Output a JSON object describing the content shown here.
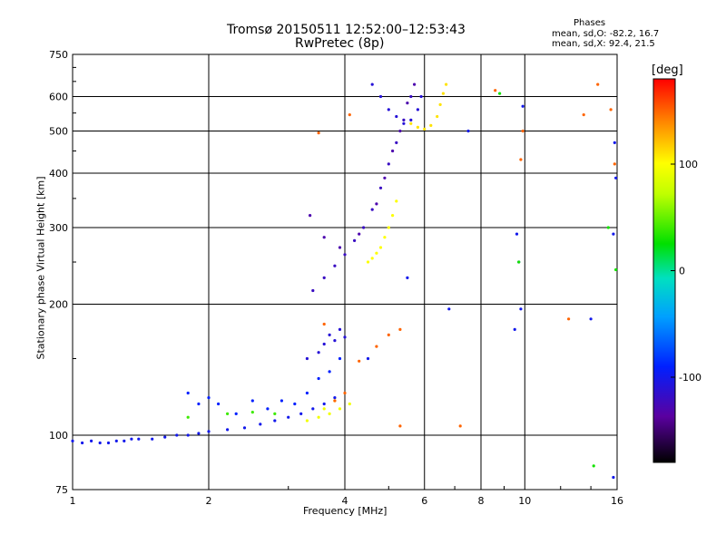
{
  "chart_data": {
    "type": "scatter",
    "title": "Tromsø 20150511 12:52:00–12:53:43",
    "subtitle": "RwPretec (8p)",
    "stats": {
      "heading": "Phases",
      "line1": "mean, sd,O:  -82.2, 16.7",
      "line2": "mean, sd,X:  92.4, 21.5"
    },
    "xlabel": "Frequency [MHz]",
    "ylabel": "Stationary phase Virtual Height [km]",
    "x_scale": "log",
    "y_scale": "log",
    "xlim": [
      1,
      16
    ],
    "ylim": [
      75,
      750
    ],
    "x_ticks": [
      1,
      2,
      4,
      6,
      8,
      10,
      16
    ],
    "x_tick_labels": [
      "1",
      "2",
      "4",
      "6",
      "8",
      "10",
      "16"
    ],
    "y_ticks": [
      75,
      100,
      200,
      300,
      400,
      500,
      600,
      750
    ],
    "y_tick_labels": [
      "75",
      "100",
      "200",
      "300",
      "400",
      "500",
      "600",
      "750"
    ],
    "grid": true,
    "colorbar": {
      "label": "[deg]",
      "range": [
        -180,
        180
      ],
      "ticks": [
        -100,
        0,
        100
      ],
      "tick_labels": [
        "-100",
        "0",
        "100"
      ]
    },
    "series": [
      {
        "phase": -100,
        "points": [
          [
            1.0,
            97
          ],
          [
            1.05,
            96
          ],
          [
            1.1,
            97
          ],
          [
            1.15,
            96
          ],
          [
            1.2,
            96
          ],
          [
            1.25,
            97
          ],
          [
            1.3,
            97
          ],
          [
            1.35,
            98
          ],
          [
            1.4,
            98
          ],
          [
            1.5,
            98
          ],
          [
            1.6,
            99
          ],
          [
            1.7,
            100
          ],
          [
            1.8,
            100
          ],
          [
            1.9,
            101
          ],
          [
            2.0,
            102
          ],
          [
            2.2,
            103
          ],
          [
            2.4,
            104
          ],
          [
            2.6,
            106
          ],
          [
            2.8,
            108
          ],
          [
            3.0,
            110
          ],
          [
            3.2,
            112
          ],
          [
            3.4,
            115
          ],
          [
            3.6,
            118
          ],
          [
            3.8,
            122
          ]
        ]
      },
      {
        "phase": -90,
        "points": [
          [
            1.8,
            125
          ],
          [
            1.9,
            118
          ],
          [
            2.0,
            122
          ],
          [
            2.1,
            118
          ],
          [
            2.3,
            112
          ],
          [
            2.5,
            120
          ],
          [
            2.7,
            115
          ],
          [
            2.9,
            120
          ],
          [
            3.1,
            118
          ],
          [
            3.3,
            125
          ],
          [
            3.5,
            135
          ],
          [
            3.7,
            140
          ],
          [
            3.9,
            150
          ]
        ]
      },
      {
        "phase": -110,
        "points": [
          [
            3.3,
            150
          ],
          [
            3.5,
            155
          ],
          [
            3.6,
            162
          ],
          [
            3.7,
            170
          ],
          [
            3.8,
            165
          ],
          [
            3.9,
            175
          ],
          [
            4.0,
            168
          ]
        ]
      },
      {
        "phase": -120,
        "points": [
          [
            3.4,
            215
          ],
          [
            3.6,
            230
          ],
          [
            3.8,
            245
          ],
          [
            4.0,
            260
          ],
          [
            4.2,
            280
          ],
          [
            4.4,
            300
          ],
          [
            4.6,
            330
          ],
          [
            4.8,
            370
          ],
          [
            5.0,
            420
          ],
          [
            5.2,
            470
          ],
          [
            5.4,
            530
          ],
          [
            5.6,
            600
          ]
        ]
      },
      {
        "phase": -130,
        "points": [
          [
            3.35,
            320
          ],
          [
            3.6,
            285
          ],
          [
            3.9,
            270
          ],
          [
            4.3,
            290
          ],
          [
            4.7,
            340
          ],
          [
            4.9,
            390
          ],
          [
            5.1,
            450
          ],
          [
            5.3,
            500
          ],
          [
            5.5,
            580
          ],
          [
            5.7,
            640
          ]
        ]
      },
      {
        "phase": -110,
        "points": [
          [
            4.6,
            640
          ],
          [
            4.8,
            600
          ],
          [
            5.0,
            560
          ],
          [
            5.2,
            540
          ],
          [
            5.4,
            520
          ],
          [
            5.6,
            530
          ],
          [
            5.8,
            560
          ],
          [
            5.9,
            600
          ]
        ]
      },
      {
        "phase": 100,
        "points": [
          [
            4.5,
            250
          ],
          [
            4.6,
            255
          ],
          [
            4.7,
            262
          ],
          [
            4.8,
            270
          ],
          [
            4.9,
            285
          ],
          [
            5.0,
            300
          ],
          [
            5.1,
            320
          ],
          [
            5.2,
            345
          ]
        ]
      },
      {
        "phase": 110,
        "points": [
          [
            5.6,
            520
          ],
          [
            5.8,
            510
          ],
          [
            6.0,
            505
          ],
          [
            6.2,
            515
          ],
          [
            6.4,
            540
          ],
          [
            6.5,
            575
          ],
          [
            6.6,
            610
          ],
          [
            6.7,
            640
          ]
        ]
      },
      {
        "phase": 95,
        "points": [
          [
            3.3,
            108
          ],
          [
            3.5,
            110
          ],
          [
            3.7,
            112
          ],
          [
            3.9,
            115
          ],
          [
            4.1,
            118
          ],
          [
            3.6,
            115
          ],
          [
            3.8,
            120
          ]
        ]
      },
      {
        "phase": 40,
        "points": [
          [
            1.8,
            110
          ],
          [
            2.2,
            112
          ],
          [
            2.5,
            113
          ],
          [
            2.8,
            112
          ]
        ]
      },
      {
        "phase": 150,
        "points": [
          [
            3.8,
            120
          ],
          [
            4.0,
            125
          ],
          [
            4.3,
            148
          ],
          [
            4.7,
            160
          ],
          [
            5.0,
            170
          ],
          [
            5.3,
            175
          ],
          [
            4.1,
            545
          ],
          [
            3.5,
            495
          ],
          [
            3.6,
            180
          ],
          [
            5.3,
            105
          ],
          [
            7.2,
            105
          ],
          [
            8.6,
            620
          ],
          [
            9.8,
            430
          ],
          [
            9.9,
            500
          ],
          [
            12.5,
            185
          ],
          [
            13.5,
            545
          ],
          [
            14.5,
            640
          ],
          [
            15.5,
            560
          ],
          [
            15.8,
            420
          ]
        ]
      },
      {
        "phase": -100,
        "points": [
          [
            9.6,
            290
          ],
          [
            9.7,
            250
          ],
          [
            9.8,
            195
          ],
          [
            9.9,
            570
          ],
          [
            9.5,
            175
          ],
          [
            15.8,
            470
          ],
          [
            15.9,
            390
          ],
          [
            15.7,
            290
          ],
          [
            14.0,
            185
          ],
          [
            15.7,
            80
          ],
          [
            6.8,
            195
          ],
          [
            5.5,
            230
          ],
          [
            4.5,
            150
          ],
          [
            7.5,
            500
          ]
        ]
      },
      {
        "phase": 30,
        "points": [
          [
            9.7,
            250
          ],
          [
            15.9,
            240
          ],
          [
            15.3,
            300
          ],
          [
            14.2,
            85
          ],
          [
            8.8,
            610
          ]
        ]
      }
    ]
  }
}
